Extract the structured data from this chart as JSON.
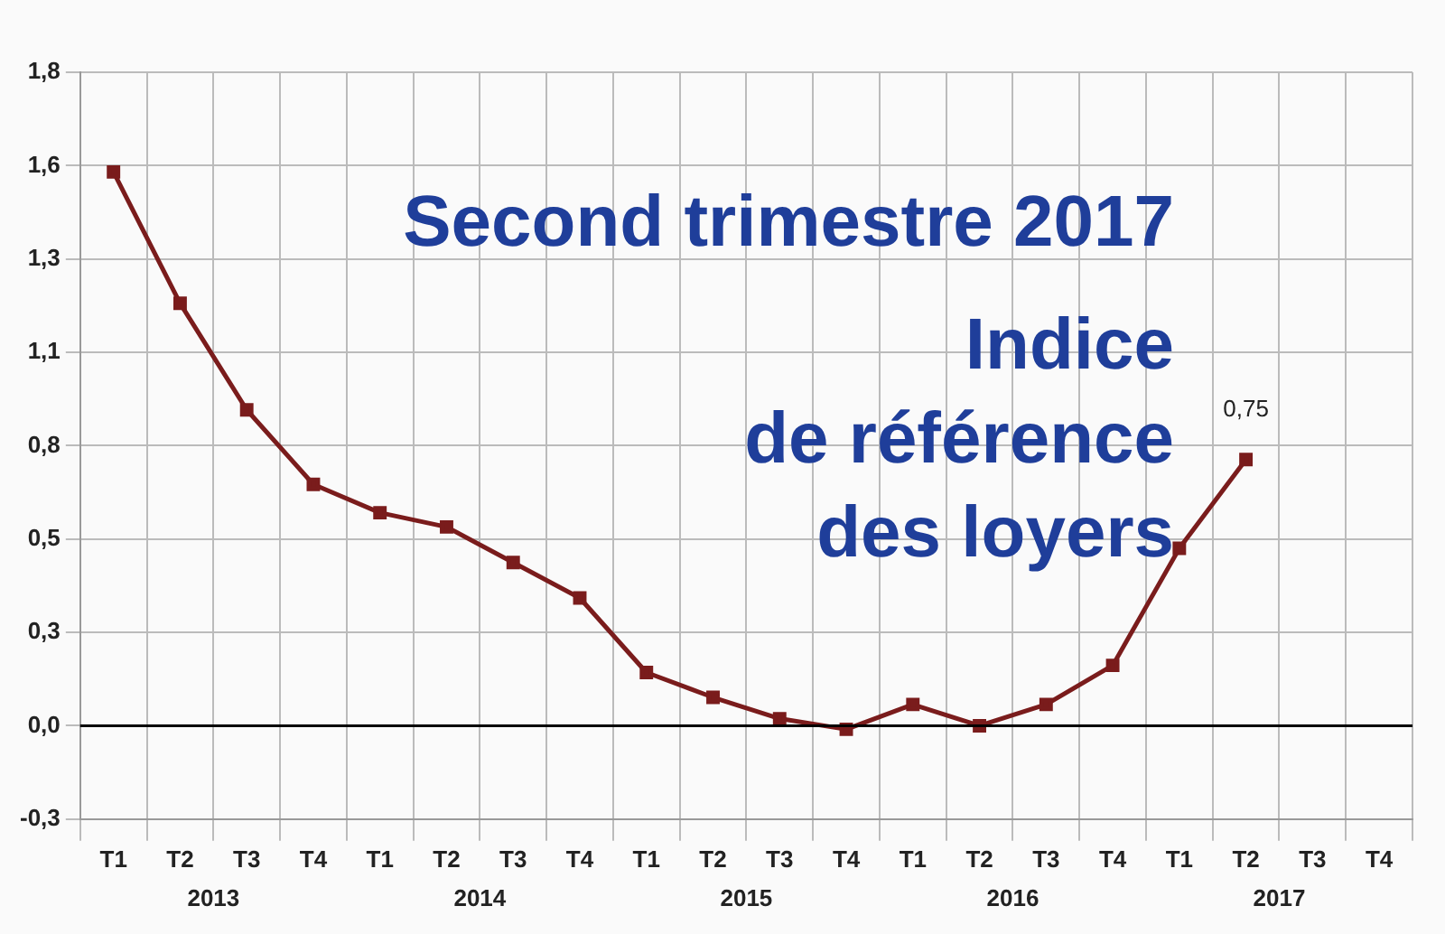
{
  "chart_data": {
    "type": "line",
    "title": "Second trimestre 2017",
    "subtitle": "Indice\nde référence\ndes loyers",
    "categories": [
      "T1",
      "T2",
      "T3",
      "T4",
      "T1",
      "T2",
      "T3",
      "T4",
      "T1",
      "T2",
      "T3",
      "T4",
      "T1",
      "T2",
      "T3",
      "T4",
      "T1",
      "T2",
      "T3",
      "T4"
    ],
    "series": [
      {
        "color": "#7a1c1c",
        "values": [
          1.56,
          1.19,
          0.89,
          0.68,
          0.6,
          0.56,
          0.46,
          0.36,
          0.15,
          0.08,
          0.02,
          -0.01,
          0.06,
          0.0,
          0.06,
          0.17,
          0.5,
          0.75,
          null,
          null
        ],
        "value_labels": [
          null,
          null,
          null,
          null,
          null,
          null,
          null,
          null,
          null,
          null,
          null,
          null,
          null,
          null,
          null,
          null,
          null,
          "0,75",
          null,
          null
        ]
      }
    ],
    "ylim": [
      -0.263,
      1.841
    ],
    "yticks": [
      {
        "value": -0.263,
        "label": "-0,3"
      },
      {
        "value": 0,
        "label": "0,0"
      },
      {
        "value": 0.263,
        "label": "0,3"
      },
      {
        "value": 0.526,
        "label": "0,5"
      },
      {
        "value": 0.789,
        "label": "0,8"
      },
      {
        "value": 1.052,
        "label": "1,1"
      },
      {
        "value": 1.315,
        "label": "1,3"
      },
      {
        "value": 1.578,
        "label": "1,6"
      },
      {
        "value": 1.841,
        "label": "1,8"
      }
    ],
    "ref_lines": [
      {
        "axis": "y",
        "value": 0,
        "color": "#000000"
      }
    ],
    "annotations": [
      "2013",
      "2014",
      "2015",
      "2016",
      "2017"
    ],
    "grid": true,
    "marker": "square",
    "line_style": "solid"
  }
}
